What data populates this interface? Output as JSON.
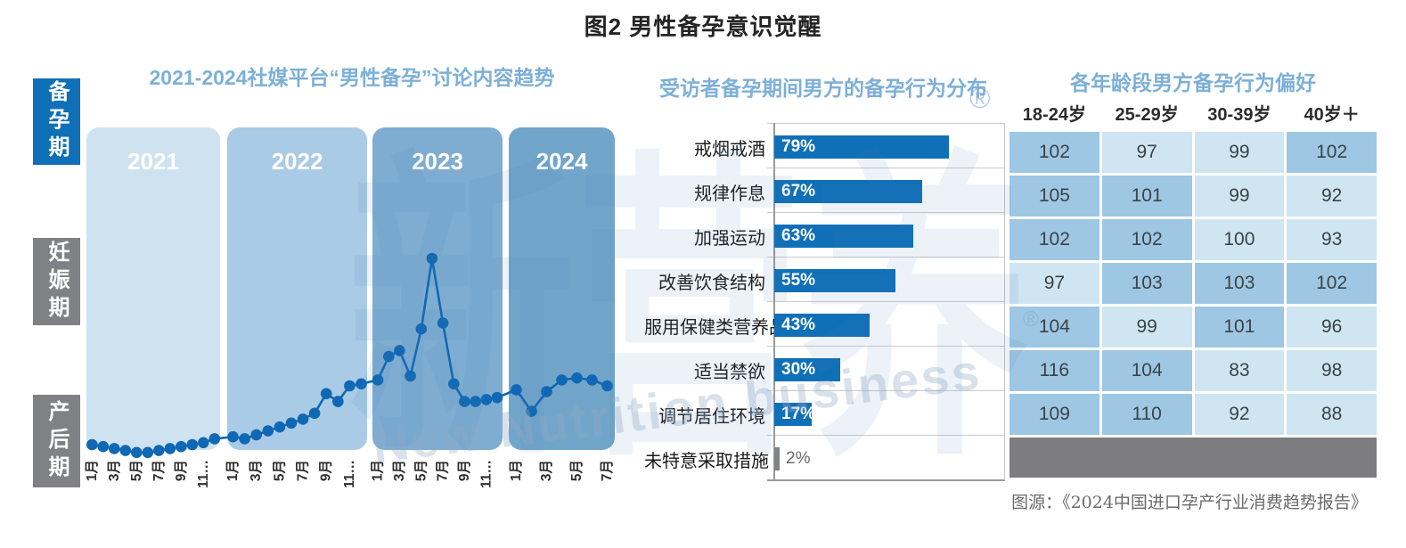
{
  "page_title": "图2 男性备孕意识觉醒",
  "sidebar": {
    "active_index": 0,
    "items": [
      {
        "label": "备孕期",
        "active": true
      },
      {
        "label": "妊娠期",
        "active": false
      },
      {
        "label": "产后期",
        "active": false
      }
    ]
  },
  "source_note": "图源：《2024中国进口孕产行业消费趋势报告》",
  "watermark": {
    "cn": "新营养",
    "en": "New Nutrition business",
    "reg": "®"
  },
  "colors": {
    "accent_blue": "#1070b7",
    "muted_gray": "#808285",
    "heading_blue": "#7cb0d8",
    "table_medium": "#9ec7e4",
    "table_light": "#cfe5f2",
    "footer_gray": "#7d7d80"
  },
  "chart_data": [
    {
      "type": "line",
      "title": "2021-2024社媒平台“男性备孕”讨论内容趋势",
      "line_color": "#1068b4",
      "ylim": [
        0,
        100
      ],
      "grid": false,
      "bands": [
        {
          "year": "2021",
          "color": "#cfe2f0",
          "tick_labels": [
            "1月",
            "3月",
            "5月",
            "7月",
            "9月",
            "11…"
          ],
          "values": [
            5,
            4,
            3,
            2,
            1,
            1,
            2,
            3,
            4,
            5,
            6,
            8
          ]
        },
        {
          "year": "2022",
          "color": "#a9cbe6",
          "tick_labels": [
            "1月",
            "3月",
            "5月",
            "7月",
            "9月",
            "11…"
          ],
          "values": [
            9,
            8,
            10,
            12,
            14,
            16,
            18,
            21,
            31,
            27,
            35,
            36
          ]
        },
        {
          "year": "2023",
          "color": "#7fadd2",
          "tick_labels": [
            "1月",
            "3月",
            "5月",
            "7月",
            "9月",
            "11…"
          ],
          "values": [
            38,
            50,
            53,
            40,
            64,
            100,
            67,
            36,
            27,
            27,
            28,
            29
          ]
        },
        {
          "year": "2024",
          "color": "#72a5ca",
          "tick_labels": [
            "1月",
            "3月",
            "5月",
            "7月"
          ],
          "values": [
            33,
            22,
            32,
            38,
            39,
            38,
            35
          ]
        }
      ]
    },
    {
      "type": "bar",
      "title": "受访者备孕期间男方的备孕行为分布",
      "orientation": "horizontal",
      "unit": "%",
      "xlim": [
        0,
        100
      ],
      "categories": [
        "戒烟戒酒",
        "规律作息",
        "加强运动",
        "改善饮食结构",
        "服用保健类营养品",
        "适当禁欲",
        "调节居住环境",
        "未特意采取措施"
      ],
      "values": [
        79,
        67,
        63,
        55,
        43,
        30,
        17,
        2
      ],
      "muted_index": 7,
      "bar_color": "#1070b7",
      "muted_bar_color": "#808285"
    },
    {
      "type": "table",
      "title": "各年龄段男方备孕行为偏好",
      "columns": [
        "18-24岁",
        "25-29岁",
        "30-39岁",
        "40岁＋"
      ],
      "rows": [
        [
          102,
          97,
          99,
          102
        ],
        [
          105,
          101,
          99,
          92
        ],
        [
          102,
          102,
          100,
          93
        ],
        [
          97,
          103,
          103,
          102
        ],
        [
          104,
          99,
          101,
          96
        ],
        [
          116,
          104,
          83,
          98
        ],
        [
          109,
          110,
          92,
          88
        ]
      ],
      "cell_tones": [
        [
          "medium",
          "light",
          "light",
          "medium"
        ],
        [
          "medium",
          "medium",
          "light",
          "light"
        ],
        [
          "medium",
          "medium",
          "light",
          "light"
        ],
        [
          "light",
          "medium",
          "medium",
          "medium"
        ],
        [
          "medium",
          "light",
          "medium",
          "light"
        ],
        [
          "medium",
          "medium",
          "light",
          "light"
        ],
        [
          "medium",
          "medium",
          "light",
          "light"
        ]
      ],
      "tone_colors": {
        "medium": "#9ec7e4",
        "light": "#cfe5f2"
      },
      "has_empty_footer_row": true
    }
  ]
}
